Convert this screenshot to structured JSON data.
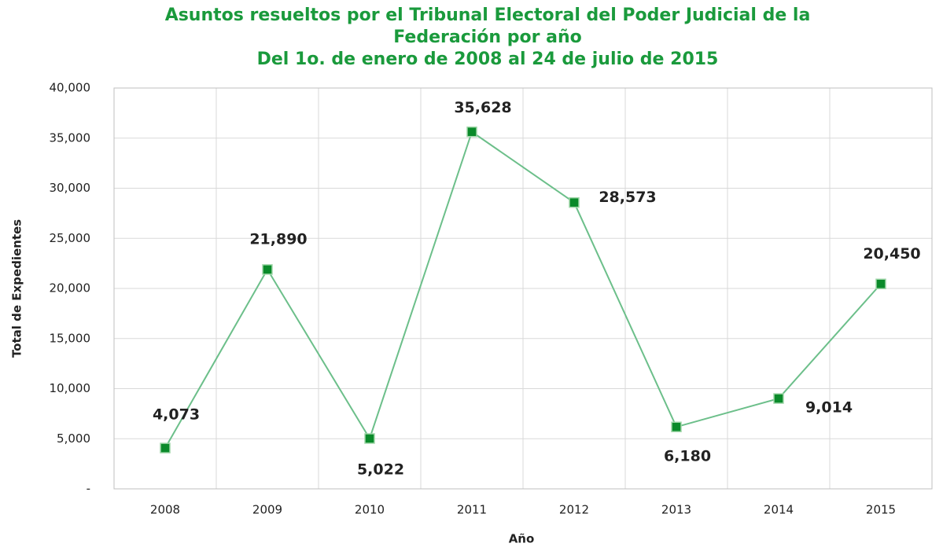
{
  "chart_data": {
    "type": "line",
    "title": "Asuntos resueltos por el Tribunal Electoral del Poder Judicial de la Federación por año",
    "subtitle": "Del 1o. de enero de 2008 al 24 de julio de 2015",
    "x_label": "Año",
    "y_label": "Total de Expedientes",
    "categories": [
      "2008",
      "2009",
      "2010",
      "2011",
      "2012",
      "2013",
      "2014",
      "2015"
    ],
    "series": [
      {
        "name": "Total de Expedientes",
        "color": "#6cbf8a",
        "marker_color": "#0a8a2a",
        "values": [
          4073,
          21890,
          5022,
          35628,
          28573,
          6180,
          9014,
          20450
        ],
        "value_labels": [
          "4,073",
          "21,890",
          "5,022",
          "35,628",
          "28,573",
          "6,180",
          "9,014",
          "20,450"
        ]
      }
    ],
    "ylim": [
      0,
      40000
    ],
    "yticks": [
      {
        "value": 0,
        "label": "-"
      },
      {
        "value": 5000,
        "label": "5,000"
      },
      {
        "value": 10000,
        "label": "10,000"
      },
      {
        "value": 15000,
        "label": "15,000"
      },
      {
        "value": 20000,
        "label": "20,000"
      },
      {
        "value": 25000,
        "label": "25,000"
      },
      {
        "value": 30000,
        "label": "30,000"
      },
      {
        "value": 35000,
        "label": "35,000"
      },
      {
        "value": 40000,
        "label": "40,000"
      }
    ],
    "grid": true
  }
}
